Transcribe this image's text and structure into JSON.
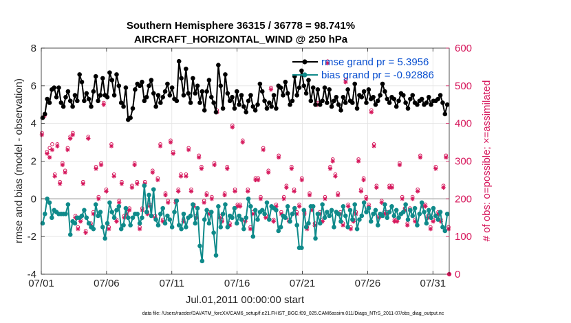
{
  "chart_data": {
    "type": "line",
    "title_line1": "Southern Hemisphere 36315 / 36778 = 98.741%",
    "title_line2": "AIRCRAFT_HORIZONTAL_WIND @ 250 hPa",
    "xlabel": "Jul.01,2011 00:00:00 start",
    "ylabel_left": "rmse and bias (model - observation)",
    "ylabel_right": "# of obs: o=possible; ×=assimilated",
    "footnote": "data file: /Users/raeder/DAI/ATM_forcXX/CAM6_setup/f.e21.FHIST_BGC.f09_025.CAM6assim.011/Diags_NTrS_2011-07/obs_diag_output.nc",
    "xlim": [
      0,
      31.25
    ],
    "ylim_left": [
      -4,
      8
    ],
    "ylim_right": [
      0,
      600
    ],
    "x_ticks": [
      {
        "x": 0,
        "label": "07/01"
      },
      {
        "x": 5,
        "label": "07/06"
      },
      {
        "x": 10,
        "label": "07/11"
      },
      {
        "x": 15,
        "label": "07/16"
      },
      {
        "x": 20,
        "label": "07/21"
      },
      {
        "x": 25,
        "label": "07/26"
      },
      {
        "x": 30,
        "label": "07/31"
      }
    ],
    "y_ticks_left": [
      -4,
      -2,
      0,
      2,
      4,
      6,
      8
    ],
    "y_ticks_right": [
      0,
      100,
      200,
      300,
      400,
      500,
      600
    ],
    "legend": [
      {
        "label": "rmse grand pr = 5.3956",
        "color": "#000000"
      },
      {
        "label": "bias grand pr = -0.92886",
        "color": "#0f8a8a"
      }
    ],
    "rmse_values": [
      4.3,
      4.5,
      5.3,
      5.1,
      5.8,
      5.9,
      5.4,
      5.9,
      5.1,
      4.9,
      5.4,
      5.7,
      5.2,
      4.9,
      5.5,
      5.2,
      6.6,
      6.2,
      5.2,
      5.6,
      5.3,
      4.9,
      5.7,
      6.5,
      5.2,
      5.5,
      6.4,
      5.5,
      5.4,
      6.7,
      6.3,
      5.5,
      6.6,
      6.0,
      5.1,
      4.9,
      5.9,
      4.2,
      4.3,
      4.8,
      5.8,
      6.1,
      6.0,
      6.2,
      5.2,
      5.4,
      6.0,
      6.3,
      5.6,
      4.9,
      5.5,
      5.1,
      5.4,
      5.7,
      6.1,
      5.5,
      5.9,
      5.3,
      5.2,
      7.3,
      6.4,
      5.5,
      6.9,
      5.6,
      5.1,
      6.4,
      5.6,
      6.0,
      5.1,
      5.7,
      4.7,
      5.7,
      6.3,
      5.4,
      5.1,
      4.6,
      7.1,
      6.0,
      4.8,
      6.6,
      5.6,
      5.2,
      5.4,
      4.8,
      5.7,
      5.0,
      5.5,
      4.9,
      4.6,
      5.2,
      5.5,
      4.9,
      4.7,
      5.0,
      6.1,
      5.7,
      5.2,
      4.8,
      5.1,
      4.9,
      5.5,
      4.8,
      6.0,
      5.9,
      5.5,
      6.2,
      5.6,
      5.0,
      5.2,
      6.5,
      5.5,
      5.9,
      6.8,
      6.0,
      5.6,
      6.3,
      5.2,
      5.9,
      5.0,
      5.8,
      5.0,
      5.2,
      5.9,
      5.1,
      5.8,
      4.9,
      5.2,
      5.4,
      5.0,
      4.7,
      5.4,
      5.1,
      5.8,
      5.2,
      5.1,
      6.1,
      4.8,
      5.5,
      5.4,
      5.7,
      5.1,
      5.8,
      5.3,
      5.4,
      5.0,
      5.2,
      5.5,
      6.1,
      5.7,
      5.3,
      5.1,
      5.4,
      5.3,
      4.9,
      5.2,
      5.6,
      5.5,
      5.1,
      4.8,
      5.3,
      5.5,
      5.1,
      5.0,
      5.2,
      5.3,
      5.0,
      5.1,
      5.4,
      5.0,
      5.2,
      5.2,
      5.3,
      5.5,
      5.1,
      4.5,
      5.0
    ],
    "bias_values": [
      -1.3,
      -0.8,
      0.0,
      -0.2,
      -1.0,
      -0.6,
      -0.7,
      -0.8,
      -0.8,
      -0.8,
      -0.8,
      -0.3,
      -1.9,
      -1.2,
      -1.3,
      -1.0,
      -1.0,
      -0.9,
      -0.6,
      -1.0,
      -1.3,
      -1.5,
      -1.6,
      -0.3,
      -0.9,
      -0.7,
      -1.5,
      -2.1,
      -1.3,
      -0.2,
      -0.7,
      -1.0,
      -0.6,
      -0.4,
      -1.6,
      -1.4,
      -0.5,
      -1.0,
      -1.4,
      -1.0,
      -0.8,
      -0.8,
      -1.3,
      -1.0,
      0.7,
      -0.7,
      0.2,
      -0.9,
      0.5,
      -1.1,
      -1.4,
      -0.8,
      -0.5,
      -1.3,
      -0.9,
      -1.1,
      -1.5,
      -0.7,
      -0.1,
      -1.4,
      -1.6,
      -0.8,
      -1.5,
      -1.0,
      -0.9,
      -0.3,
      -1.3,
      -0.5,
      -2.5,
      -3.3,
      -1.1,
      -0.6,
      -1.3,
      -0.7,
      -1.8,
      -3.0,
      -0.4,
      -1.5,
      -0.8,
      -0.3,
      -1.5,
      -0.9,
      -1.0,
      -0.5,
      -1.3,
      -0.9,
      -1.1,
      -1.6,
      -1.0,
      0.0,
      -0.4,
      -2.0,
      -0.6,
      -1.1,
      -0.7,
      -0.6,
      -0.8,
      -0.2,
      -1.1,
      -0.4,
      -0.5,
      -0.6,
      -1.7,
      -1.5,
      -0.9,
      -1.0,
      -0.4,
      -1.2,
      -0.8,
      -0.5,
      -1.4,
      -2.6,
      -2.6,
      -0.6,
      -1.5,
      -1.3,
      -0.4,
      -0.4,
      -2.1,
      -0.8,
      -1.3,
      -0.3,
      -1.0,
      -0.7,
      -0.9,
      -0.6,
      -1.5,
      -0.7,
      -0.8,
      -1.2,
      -0.4,
      -0.9,
      -1.5,
      -0.6,
      -1.1,
      -0.3,
      -1.6,
      -1.1,
      -0.9,
      -0.2,
      -0.7,
      -0.5,
      -1.2,
      -0.8,
      -0.6,
      -1.4,
      -0.8,
      -0.9,
      -0.3,
      -1.0,
      -0.7,
      -0.4,
      -0.9,
      -0.6,
      -1.0,
      -0.8,
      -0.7,
      -0.3,
      -1.1,
      -0.6,
      -0.9,
      -0.5,
      -1.4,
      -0.8,
      -0.2,
      -0.7,
      -1.3,
      -0.6,
      -1.0,
      -0.5,
      -0.9,
      -1.1,
      -0.7,
      -1.5,
      -1.7,
      -0.8
    ],
    "obs_assimilated": [
      370,
      420,
      320,
      310,
      330,
      260,
      340,
      240,
      290,
      270,
      330,
      360,
      370,
      150,
      120,
      140,
      240,
      110,
      360,
      130,
      160,
      280,
      200,
      290,
      450,
      220,
      120,
      340,
      260,
      140,
      190,
      240,
      150,
      160,
      170,
      230,
      290,
      240,
      120,
      170,
      240,
      160,
      180,
      270,
      150,
      250,
      340,
      140,
      210,
      190,
      350,
      320,
      190,
      220,
      260,
      140,
      260,
      330,
      220,
      180,
      150,
      310,
      280,
      190,
      210,
      160,
      200,
      290,
      430,
      150,
      140,
      210,
      280,
      130,
      390,
      220,
      180,
      180,
      350,
      140,
      220,
      120,
      160,
      250,
      250,
      200,
      330,
      150,
      270,
      490,
      140,
      180,
      310,
      160,
      200,
      230,
      140,
      280,
      220,
      160,
      180,
      250,
      160,
      120,
      210,
      170,
      130,
      450,
      160,
      140,
      200,
      560,
      280,
      300,
      260,
      210,
      160,
      130,
      510,
      180,
      120,
      140,
      160,
      300,
      220,
      250,
      200,
      180,
      430,
      340,
      230,
      150,
      190,
      160,
      160,
      230,
      230,
      140,
      140,
      290,
      200,
      170,
      130,
      170,
      200,
      140,
      220,
      310,
      180,
      180,
      150,
      120,
      140,
      280,
      160,
      140,
      230,
      310,
      120
    ],
    "obs_possible": [
      375,
      425,
      325,
      335,
      345,
      265,
      345,
      245,
      295,
      275,
      335,
      365,
      375,
      155,
      125,
      145,
      245,
      115,
      365,
      135,
      165,
      285,
      205,
      295,
      455,
      225,
      125,
      345,
      265,
      145,
      195,
      245,
      155,
      165,
      175,
      235,
      295,
      245,
      125,
      175,
      245,
      165,
      185,
      275,
      155,
      255,
      345,
      145,
      215,
      195,
      355,
      325,
      195,
      225,
      265,
      145,
      265,
      335,
      225,
      185,
      155,
      315,
      285,
      195,
      215,
      165,
      205,
      295,
      435,
      155,
      145,
      215,
      285,
      135,
      395,
      225,
      185,
      185,
      355,
      145,
      225,
      125,
      165,
      255,
      255,
      205,
      335,
      155,
      275,
      495,
      145,
      185,
      315,
      165,
      205,
      235,
      145,
      285,
      225,
      165,
      185,
      255,
      165,
      125,
      215,
      175,
      135,
      455,
      165,
      145,
      205,
      565,
      285,
      305,
      265,
      215,
      165,
      135,
      515,
      185,
      125,
      145,
      165,
      305,
      225,
      255,
      205,
      185,
      435,
      345,
      235,
      155,
      195,
      165,
      165,
      235,
      235,
      145,
      145,
      295,
      205,
      175,
      135,
      175,
      205,
      145,
      225,
      315,
      185,
      185,
      155,
      125,
      145,
      285,
      165,
      145,
      235,
      315,
      125
    ]
  }
}
